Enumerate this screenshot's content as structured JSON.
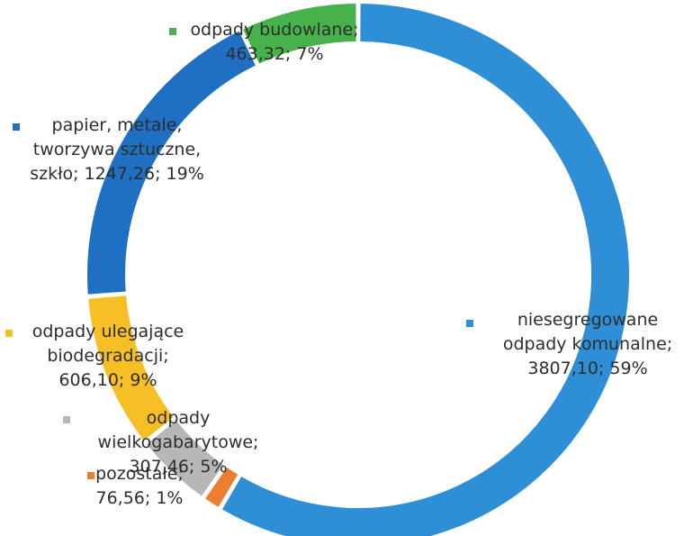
{
  "chart_data": {
    "type": "pie",
    "variant": "doughnut",
    "legend": "none",
    "start_angle_deg": 0,
    "direction": "clockwise",
    "slices": [
      {
        "label_lines": [
          "niesegregowane",
          "odpady komunalne;",
          "3807,10; 59%"
        ],
        "value": 3807.1,
        "percent": 59,
        "color": "#2e8fd6"
      },
      {
        "label_lines": [
          "pozostałe;",
          "76,56; 1%"
        ],
        "value": 76.56,
        "percent": 1,
        "color": "#ed7d31"
      },
      {
        "label_lines": [
          "odpady",
          "wielkogabarytowe;",
          "307,46; 5%"
        ],
        "value": 307.46,
        "percent": 5,
        "color": "#b7b7b7"
      },
      {
        "label_lines": [
          "odpady ulegające",
          "biodegradacji;",
          "606,10; 9%"
        ],
        "value": 606.1,
        "percent": 9,
        "color": "#f6bf25"
      },
      {
        "label_lines": [
          "papier, metale,",
          "tworzywa sztuczne,",
          "szkło; 1247,26; 19%"
        ],
        "value": 1247.26,
        "percent": 19,
        "color": "#1f6fc3"
      },
      {
        "label_lines": [
          "odpady budowlane;",
          "463,32; 7%"
        ],
        "value": 463.32,
        "percent": 7,
        "color": "#47b24b"
      }
    ]
  }
}
